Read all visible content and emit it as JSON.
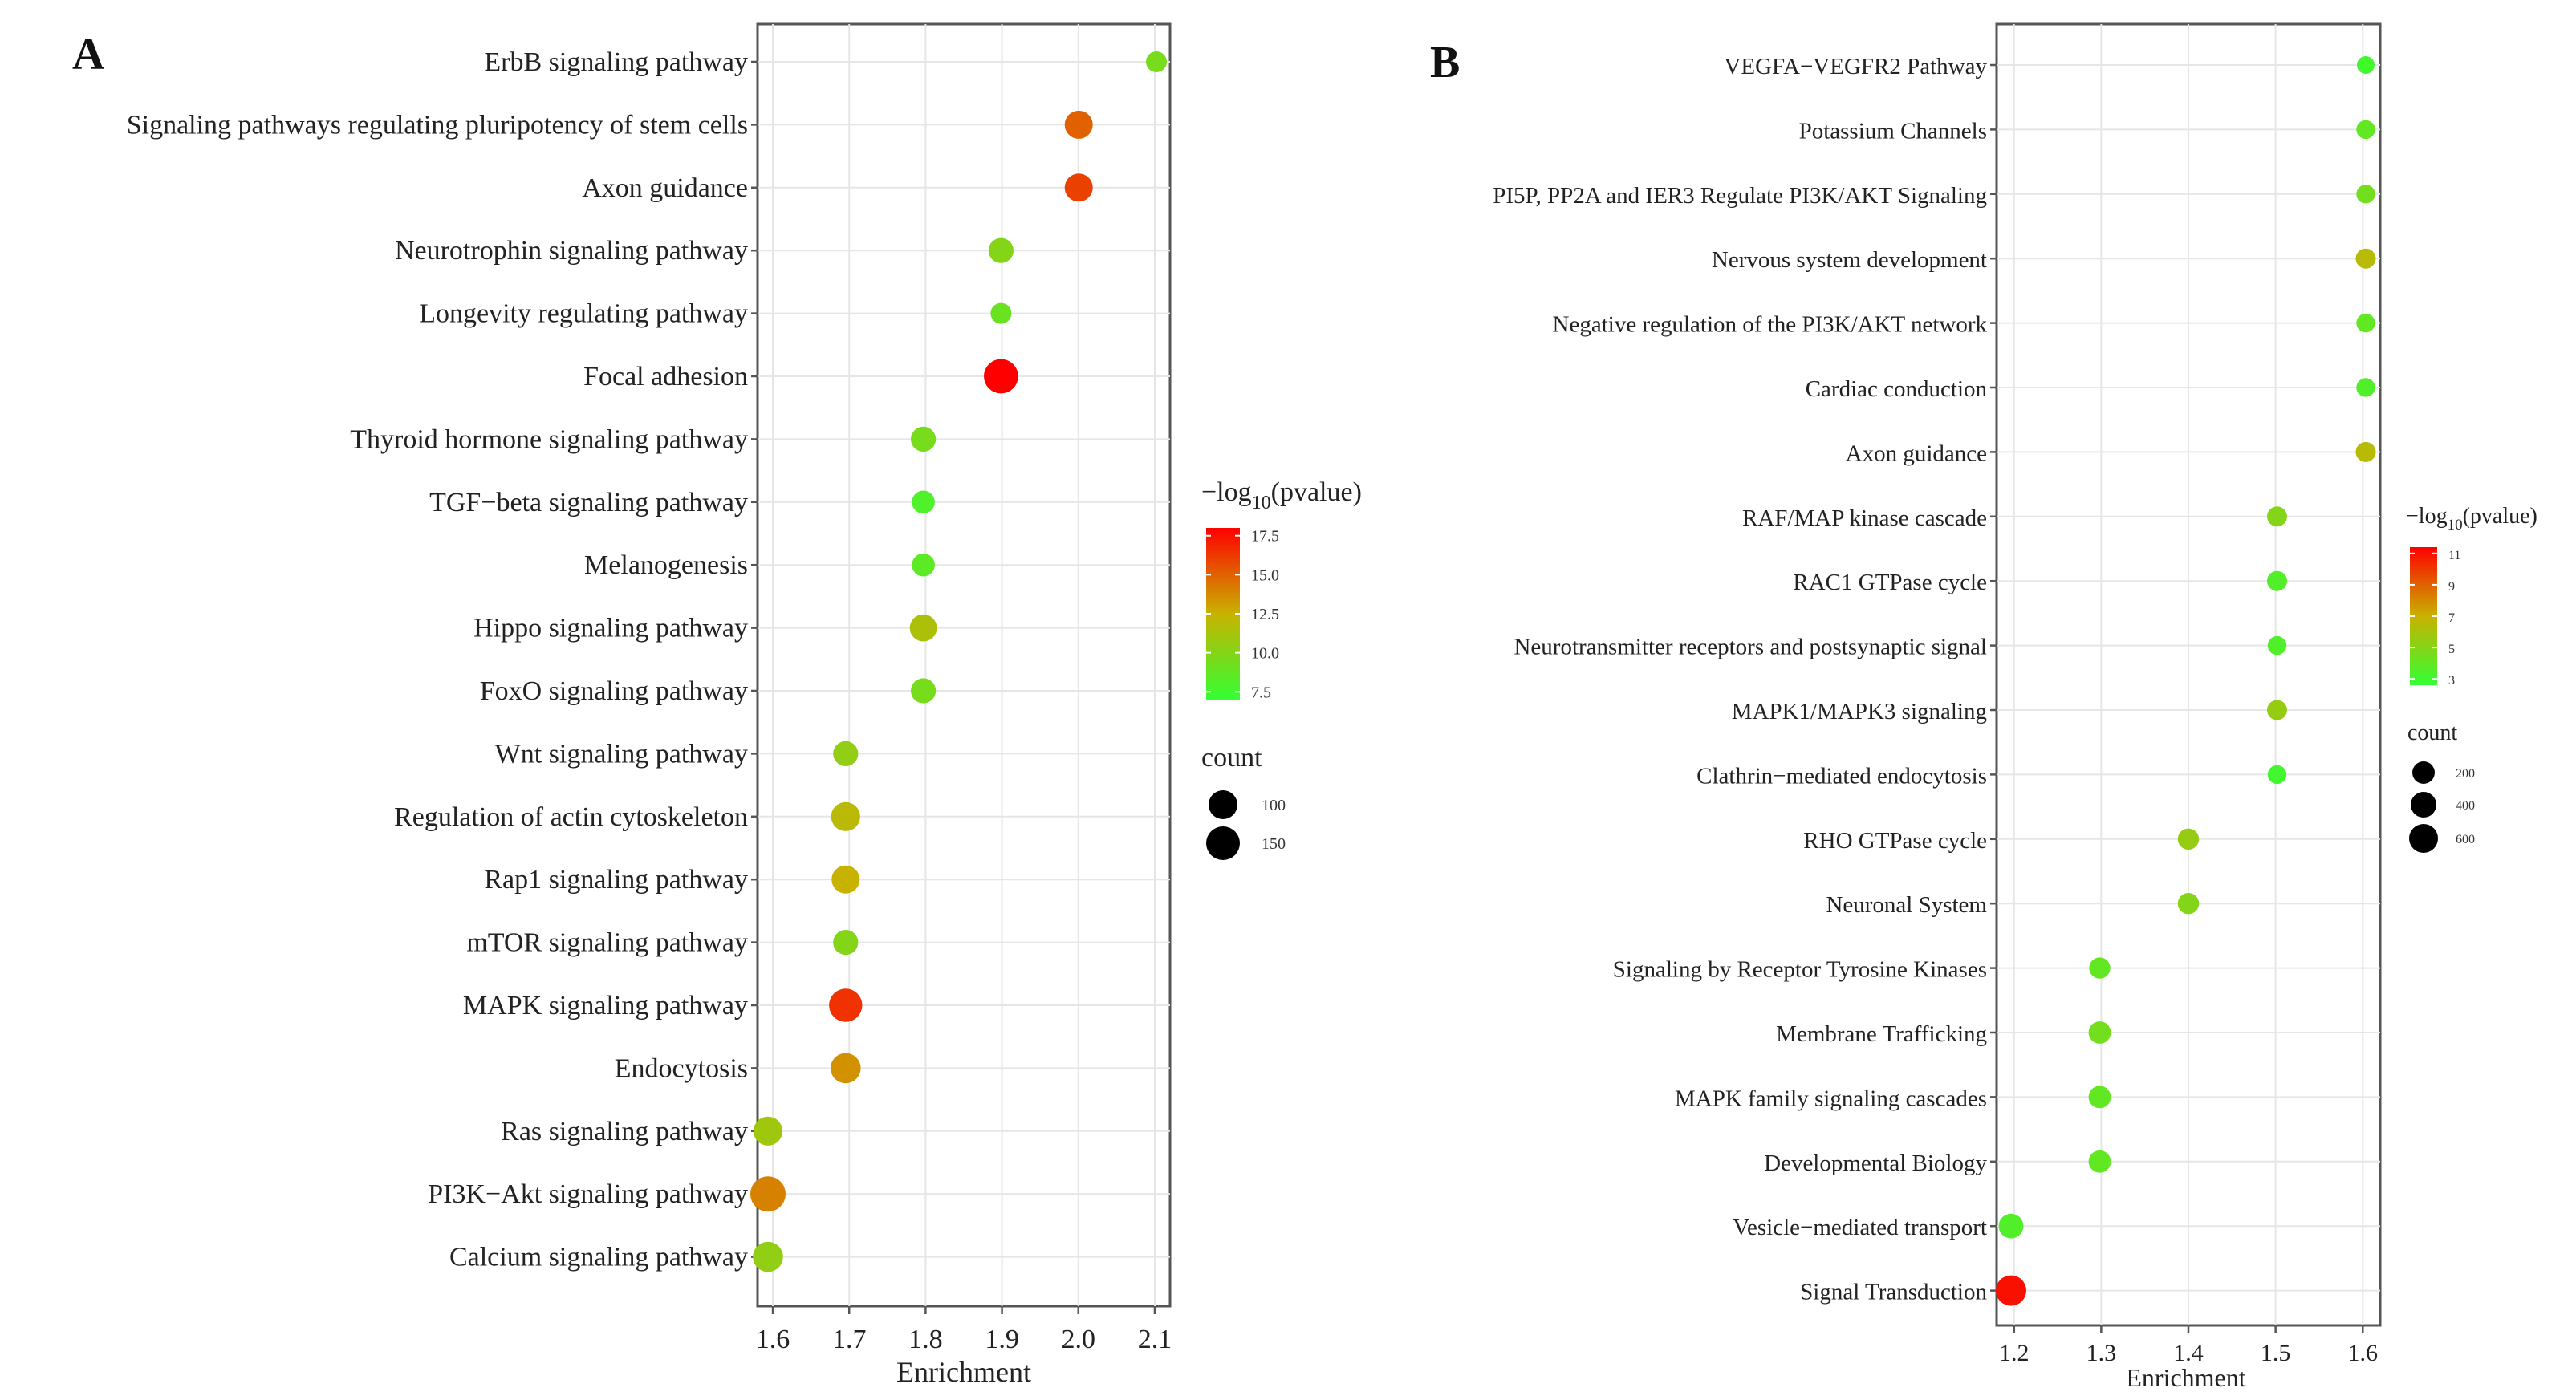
{
  "chart_data": [
    {
      "panel": "A",
      "type": "scatter",
      "xlabel": "Enrichment",
      "xlim": [
        1.58,
        2.12
      ],
      "xticks": [
        "1.6",
        "1.7",
        "1.8",
        "1.9",
        "2.0",
        "2.1"
      ],
      "color_legend": {
        "title_prefix": "−log",
        "title_sub": "10",
        "title_suffix": "(pvalue)",
        "min": 7.0,
        "max": 18.0,
        "ticks": [
          "17.5",
          "15.0",
          "12.5",
          "10.0",
          "7.5"
        ]
      },
      "size_legend": {
        "title": "count",
        "ticks": [
          "100",
          "150"
        ]
      },
      "categories": [
        "ErbB signaling pathway",
        "Signaling pathways regulating pluripotency of stem cells",
        "Axon guidance",
        "Neurotrophin signaling pathway",
        "Longevity regulating pathway",
        "Focal adhesion",
        "Thyroid hormone signaling pathway",
        "TGF−beta signaling pathway",
        "Melanogenesis",
        "Hippo signaling pathway",
        "FoxO signaling pathway",
        "Wnt signaling pathway",
        "Regulation of actin cytoskeleton",
        "Rap1 signaling pathway",
        "mTOR signaling pathway",
        "MAPK signaling pathway",
        "Endocytosis",
        "Ras signaling pathway",
        "PI3K−Akt signaling pathway",
        "Calcium signaling pathway"
      ],
      "enrichment": [
        2.1,
        2.0,
        2.0,
        1.9,
        1.9,
        1.9,
        1.8,
        1.8,
        1.8,
        1.8,
        1.8,
        1.7,
        1.7,
        1.7,
        1.7,
        1.7,
        1.7,
        1.6,
        1.6,
        1.6
      ],
      "neg_log10_pvalue": [
        9.5,
        15.0,
        16.0,
        10.0,
        9.0,
        18.0,
        9.5,
        8.0,
        8.5,
        11.5,
        9.5,
        10.5,
        12.0,
        12.5,
        10.0,
        16.5,
        13.5,
        11.0,
        14.0,
        10.5
      ],
      "count": [
        80,
        115,
        115,
        100,
        80,
        145,
        100,
        90,
        90,
        110,
        100,
        100,
        120,
        115,
        100,
        140,
        125,
        120,
        150,
        125
      ]
    },
    {
      "panel": "B",
      "type": "scatter",
      "xlabel": "Enrichment",
      "xlim": [
        1.18,
        1.62
      ],
      "xticks": [
        "1.2",
        "1.3",
        "1.4",
        "1.5",
        "1.6"
      ],
      "color_legend": {
        "title_prefix": "−log",
        "title_sub": "10",
        "title_suffix": "(pvalue)",
        "min": 2.6,
        "max": 11.4,
        "ticks": [
          "11",
          "9",
          "7",
          "5",
          "3"
        ]
      },
      "size_legend": {
        "title": "count",
        "ticks": [
          "200",
          "400",
          "600"
        ]
      },
      "categories": [
        "VEGFA−VEGFR2 Pathway",
        "Potassium Channels",
        "PI5P, PP2A and IER3 Regulate PI3K/AKT Signaling",
        "Nervous system development",
        "Negative regulation of the PI3K/AKT network",
        "Cardiac conduction",
        "Axon guidance",
        "RAF/MAP kinase cascade",
        "RAC1 GTPase cycle",
        "Neurotransmitter receptors and postsynaptic signal",
        "MAPK1/MAPK3 signaling",
        "Clathrin−mediated endocytosis",
        "RHO GTPase cycle",
        "Neuronal System",
        "Signaling by Receptor Tyrosine Kinases",
        "Membrane Trafficking",
        "MAPK family signaling cascades",
        "Developmental Biology",
        "Vesicle−mediated transport",
        "Signal Transduction"
      ],
      "enrichment": [
        1.6,
        1.6,
        1.6,
        1.6,
        1.6,
        1.6,
        1.6,
        1.5,
        1.5,
        1.5,
        1.5,
        1.5,
        1.4,
        1.4,
        1.3,
        1.3,
        1.3,
        1.3,
        1.2,
        1.2
      ],
      "neg_log10_pvalue": [
        3.0,
        4.0,
        4.5,
        6.5,
        4.0,
        3.5,
        6.5,
        5.0,
        3.5,
        3.5,
        5.5,
        3.0,
        5.5,
        5.0,
        4.0,
        4.5,
        4.0,
        4.0,
        3.5,
        11.0
      ],
      "count": [
        150,
        200,
        200,
        250,
        200,
        200,
        250,
        250,
        250,
        200,
        250,
        200,
        300,
        300,
        300,
        350,
        350,
        350,
        450,
        700
      ]
    }
  ],
  "panels": {
    "a_letter": "A",
    "b_letter": "B"
  }
}
